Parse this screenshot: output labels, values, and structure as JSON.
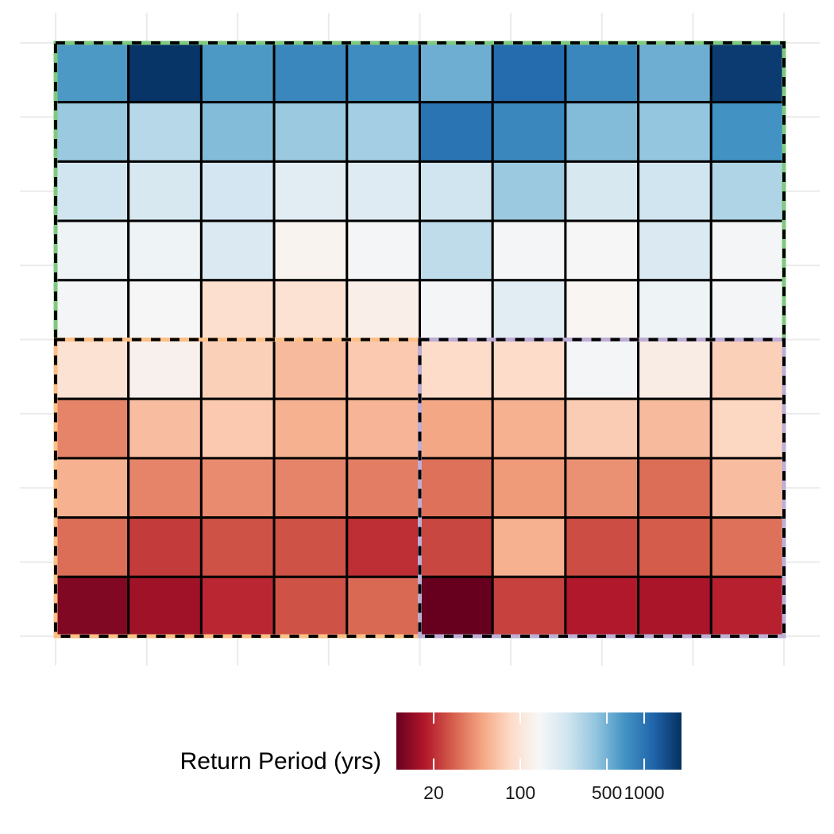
{
  "chart_data": {
    "type": "heatmap",
    "rows": 10,
    "cols": 10,
    "grid": true,
    "legend": {
      "title": "Return Period (yrs)",
      "placement": "bottom",
      "scale": "log",
      "range": [
        10,
        2000
      ],
      "ticks": [
        {
          "value": 20,
          "label": "20"
        },
        {
          "value": 100,
          "label": "100"
        },
        {
          "value": 500,
          "label": "500"
        },
        {
          "value": 1000,
          "label": "1000"
        }
      ],
      "palette": [
        "#67001f",
        "#b2182b",
        "#d6604d",
        "#f4a582",
        "#fddbc7",
        "#f7f7f7",
        "#d1e5f0",
        "#92c5de",
        "#4393c3",
        "#2166ac",
        "#053061"
      ]
    },
    "regions": [
      {
        "rows": [
          0,
          4
        ],
        "cols": [
          0,
          9
        ],
        "color": "#7fc97f"
      },
      {
        "rows": [
          5,
          9
        ],
        "cols": [
          0,
          4
        ],
        "color": "#fdc086"
      },
      {
        "rows": [
          5,
          9
        ],
        "cols": [
          5,
          9
        ],
        "color": "#beaed4"
      }
    ],
    "values": [
      [
        650,
        1900,
        650,
        800,
        750,
        520,
        1100,
        800,
        520,
        1800
      ],
      [
        380,
        300,
        450,
        380,
        350,
        1000,
        800,
        450,
        400,
        700
      ],
      [
        240,
        220,
        230,
        190,
        200,
        240,
        380,
        220,
        240,
        320
      ],
      [
        160,
        160,
        210,
        130,
        150,
        280,
        150,
        140,
        210,
        150
      ],
      [
        150,
        140,
        90,
        95,
        120,
        150,
        190,
        135,
        160,
        150
      ],
      [
        95,
        125,
        75,
        60,
        70,
        85,
        85,
        150,
        115,
        75
      ],
      [
        38,
        62,
        70,
        55,
        57,
        50,
        55,
        72,
        60,
        80
      ],
      [
        55,
        38,
        40,
        38,
        36,
        33,
        45,
        42,
        32,
        62
      ],
      [
        32,
        22,
        26,
        26,
        20,
        24,
        55,
        25,
        28,
        33
      ],
      [
        12,
        15,
        19,
        26,
        31,
        10,
        23,
        17,
        16,
        18
      ]
    ]
  }
}
